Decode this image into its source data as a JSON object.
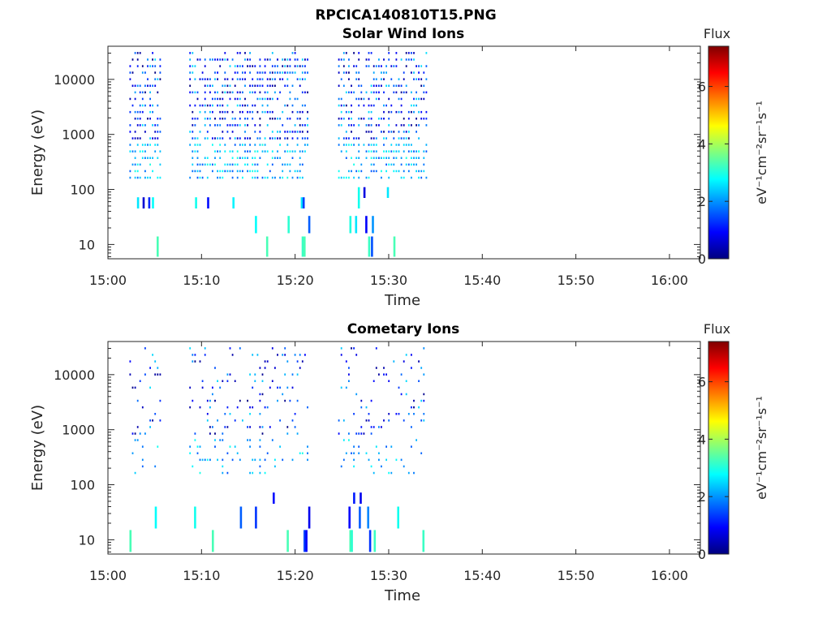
{
  "figure": {
    "title": "RPCICA140810T15.PNG"
  },
  "colormap": {
    "name": "jet",
    "colors": [
      "#00007f",
      "#0000ff",
      "#007fff",
      "#00ffff",
      "#7fff7f",
      "#ffff00",
      "#ff7f00",
      "#ff0000",
      "#7f0000"
    ]
  },
  "chart_data": [
    {
      "type": "heatmap",
      "title": "Solar Wind Ions",
      "xlabel": "Time",
      "ylabel": "Energy (eV)",
      "x_ticks": [
        "15:00",
        "15:10",
        "15:20",
        "15:30",
        "15:40",
        "15:50",
        "16:00"
      ],
      "xlim_minutes": [
        0,
        63.3
      ],
      "y_scale": "log",
      "y_ticks": [
        "10",
        "100",
        "1000",
        "10000"
      ],
      "ylim": [
        5.5,
        40000
      ],
      "colorbar": {
        "label": "Flux",
        "unit": "eV⁻¹cm⁻²sr⁻¹s⁻¹",
        "ticks": [
          "0",
          "2",
          "4",
          "6"
        ],
        "range": [
          0,
          7.4
        ]
      },
      "data_intervals_minutes": [
        [
          2.3,
          5.6
        ],
        [
          8.7,
          21.5
        ],
        [
          24.6,
          34.1
        ]
      ],
      "streaks": [
        {
          "t": 5.2,
          "e_lo": 6.0,
          "e_hi": 14.0,
          "flux": 3.3
        },
        {
          "t": 16.9,
          "e_lo": 6.0,
          "e_hi": 14.0,
          "flux": 3.3
        },
        {
          "t": 20.7,
          "e_lo": 6.0,
          "e_hi": 14.0,
          "flux": 3.2
        },
        {
          "t": 20.9,
          "e_lo": 6.0,
          "e_hi": 14.0,
          "flux": 3.3
        },
        {
          "t": 27.8,
          "e_lo": 6.0,
          "e_hi": 14.0,
          "flux": 3.2
        },
        {
          "t": 28.1,
          "e_lo": 6.0,
          "e_hi": 14.0,
          "flux": 1.5
        },
        {
          "t": 30.5,
          "e_lo": 6.0,
          "e_hi": 14.0,
          "flux": 3.3
        },
        {
          "t": 15.7,
          "e_lo": 16.0,
          "e_hi": 33.0,
          "flux": 2.8
        },
        {
          "t": 19.2,
          "e_lo": 16.0,
          "e_hi": 33.0,
          "flux": 3.1
        },
        {
          "t": 21.4,
          "e_lo": 16.0,
          "e_hi": 33.0,
          "flux": 1.6
        },
        {
          "t": 25.8,
          "e_lo": 16.0,
          "e_hi": 33.0,
          "flux": 3.0
        },
        {
          "t": 26.4,
          "e_lo": 16.0,
          "e_hi": 33.0,
          "flux": 2.6
        },
        {
          "t": 27.5,
          "e_lo": 16.0,
          "e_hi": 33.0,
          "flux": 0.9
        },
        {
          "t": 28.2,
          "e_lo": 16.0,
          "e_hi": 33.0,
          "flux": 2.0
        },
        {
          "t": 3.1,
          "e_lo": 45.0,
          "e_hi": 72.0,
          "flux": 2.6
        },
        {
          "t": 3.7,
          "e_lo": 45.0,
          "e_hi": 72.0,
          "flux": 0.6
        },
        {
          "t": 4.3,
          "e_lo": 45.0,
          "e_hi": 72.0,
          "flux": 1.2
        },
        {
          "t": 4.7,
          "e_lo": 45.0,
          "e_hi": 72.0,
          "flux": 2.8
        },
        {
          "t": 9.3,
          "e_lo": 45.0,
          "e_hi": 72.0,
          "flux": 2.9
        },
        {
          "t": 10.6,
          "e_lo": 45.0,
          "e_hi": 72.0,
          "flux": 1.0
        },
        {
          "t": 13.3,
          "e_lo": 45.0,
          "e_hi": 72.0,
          "flux": 2.7
        },
        {
          "t": 20.6,
          "e_lo": 45.0,
          "e_hi": 72.0,
          "flux": 2.6
        },
        {
          "t": 20.8,
          "e_lo": 45.0,
          "e_hi": 72.0,
          "flux": 1.4
        },
        {
          "t": 26.7,
          "e_lo": 45.0,
          "e_hi": 110.0,
          "flux": 2.9
        },
        {
          "t": 27.3,
          "e_lo": 70.0,
          "e_hi": 110.0,
          "flux": 0.7
        },
        {
          "t": 29.8,
          "e_lo": 70.0,
          "e_hi": 110.0,
          "flux": 2.6
        }
      ],
      "scatter_seed": 11,
      "scatter_density": 0.55
    },
    {
      "type": "heatmap",
      "title": "Cometary Ions",
      "xlabel": "Time",
      "ylabel": "Energy (eV)",
      "x_ticks": [
        "15:00",
        "15:10",
        "15:20",
        "15:30",
        "15:40",
        "15:50",
        "16:00"
      ],
      "xlim_minutes": [
        0,
        63.3
      ],
      "y_scale": "log",
      "y_ticks": [
        "10",
        "100",
        "1000",
        "10000"
      ],
      "ylim": [
        5.5,
        40000
      ],
      "colorbar": {
        "label": "Flux",
        "unit": "eV⁻¹cm⁻²sr⁻¹s⁻¹",
        "ticks": [
          "0",
          "2",
          "4",
          "6"
        ],
        "range": [
          0,
          7.4
        ]
      },
      "data_intervals_minutes": [
        [
          2.3,
          5.6
        ],
        [
          8.7,
          21.5
        ],
        [
          24.6,
          34.1
        ]
      ],
      "streaks": [
        {
          "t": 2.3,
          "e_lo": 6.0,
          "e_hi": 15.0,
          "flux": 3.3
        },
        {
          "t": 11.1,
          "e_lo": 6.0,
          "e_hi": 15.0,
          "flux": 3.3
        },
        {
          "t": 19.1,
          "e_lo": 6.0,
          "e_hi": 15.0,
          "flux": 3.3
        },
        {
          "t": 20.9,
          "e_lo": 6.0,
          "e_hi": 15.0,
          "flux": 1.4
        },
        {
          "t": 21.1,
          "e_lo": 6.0,
          "e_hi": 15.0,
          "flux": 0.9
        },
        {
          "t": 25.8,
          "e_lo": 6.0,
          "e_hi": 15.0,
          "flux": 3.3
        },
        {
          "t": 25.95,
          "e_lo": 6.0,
          "e_hi": 15.0,
          "flux": 3.1
        },
        {
          "t": 27.9,
          "e_lo": 6.0,
          "e_hi": 15.0,
          "flux": 1.3
        },
        {
          "t": 28.4,
          "e_lo": 6.0,
          "e_hi": 15.0,
          "flux": 3.2
        },
        {
          "t": 33.6,
          "e_lo": 6.0,
          "e_hi": 15.0,
          "flux": 3.2
        },
        {
          "t": 5.0,
          "e_lo": 16.0,
          "e_hi": 40.0,
          "flux": 2.8
        },
        {
          "t": 9.2,
          "e_lo": 16.0,
          "e_hi": 40.0,
          "flux": 2.9
        },
        {
          "t": 14.1,
          "e_lo": 16.0,
          "e_hi": 40.0,
          "flux": 1.6
        },
        {
          "t": 15.7,
          "e_lo": 16.0,
          "e_hi": 40.0,
          "flux": 1.3
        },
        {
          "t": 21.4,
          "e_lo": 16.0,
          "e_hi": 40.0,
          "flux": 0.8
        },
        {
          "t": 25.7,
          "e_lo": 16.0,
          "e_hi": 40.0,
          "flux": 0.9
        },
        {
          "t": 26.8,
          "e_lo": 16.0,
          "e_hi": 40.0,
          "flux": 1.6
        },
        {
          "t": 27.7,
          "e_lo": 16.0,
          "e_hi": 40.0,
          "flux": 1.9
        },
        {
          "t": 30.9,
          "e_lo": 16.0,
          "e_hi": 40.0,
          "flux": 2.9
        },
        {
          "t": 26.2,
          "e_lo": 45.0,
          "e_hi": 72.0,
          "flux": 1.1
        },
        {
          "t": 26.9,
          "e_lo": 45.0,
          "e_hi": 72.0,
          "flux": 0.8
        },
        {
          "t": 17.6,
          "e_lo": 45.0,
          "e_hi": 72.0,
          "flux": 1.0
        }
      ],
      "scatter_seed": 29,
      "scatter_density": 0.17
    }
  ]
}
